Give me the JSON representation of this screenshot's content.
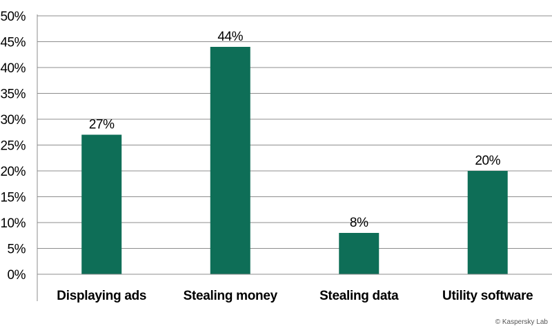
{
  "chart_data": {
    "type": "bar",
    "categories": [
      "Displaying ads",
      "Stealing money",
      "Stealing data",
      "Utility software"
    ],
    "values": [
      27,
      44,
      8,
      20
    ],
    "value_labels": [
      "27%",
      "44%",
      "8%",
      "20%"
    ],
    "ylim": [
      0,
      50
    ],
    "yticks": [
      0,
      5,
      10,
      15,
      20,
      25,
      30,
      35,
      40,
      45,
      50
    ],
    "ytick_labels": [
      "0%",
      "5%",
      "10%",
      "15%",
      "20%",
      "25%",
      "30%",
      "35%",
      "40%",
      "45%",
      "50%"
    ],
    "grid": true,
    "bar_color": "#0e6e57",
    "title": "",
    "xlabel": "",
    "ylabel": ""
  },
  "copyright": "© Kaspersky Lab"
}
